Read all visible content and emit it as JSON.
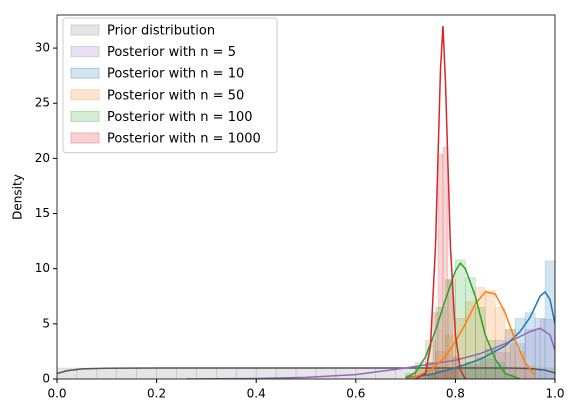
{
  "chart_data": {
    "type": "histogram",
    "y_label": "Density",
    "xlim": [
      0,
      1
    ],
    "ylim": [
      0,
      33
    ],
    "xticks": [
      {
        "value": 0,
        "label": "0.0"
      },
      0.2,
      0.4,
      0.6,
      0.8,
      {
        "value": 1,
        "label": "1.0"
      }
    ],
    "yticks": [
      0,
      5,
      10,
      15,
      20,
      25,
      30
    ],
    "legend": "upper left",
    "series": [
      {
        "name": "Prior distribution",
        "color": "#7f7f7f",
        "line_color": "#555555",
        "bins": [
          0,
          0.04,
          0.08,
          0.12,
          0.16,
          0.2,
          0.24,
          0.28,
          0.32,
          0.36,
          0.4,
          0.44,
          0.48,
          0.52,
          0.56,
          0.6,
          0.64,
          0.68,
          0.72,
          0.76,
          0.8,
          0.84,
          0.88,
          0.92,
          0.96,
          1
        ],
        "values": [
          1,
          1,
          1,
          1,
          1,
          1,
          1,
          1,
          1,
          1,
          1,
          1,
          1,
          1,
          1,
          1,
          1,
          1,
          1,
          1,
          1,
          1,
          1,
          1,
          1
        ],
        "line_x": [
          0,
          0.02,
          0.05,
          0.1,
          0.2,
          0.3,
          0.4,
          0.5,
          0.6,
          0.7,
          0.8,
          0.9,
          0.95,
          0.98,
          1
        ],
        "line_y": [
          0.5,
          0.75,
          0.92,
          0.98,
          1,
          1,
          1,
          1,
          1,
          1,
          1,
          1,
          0.95,
          0.8,
          0.55
        ]
      },
      {
        "name": "Posterior with n = 5",
        "color": "#9467bd",
        "line_color": "#9467bd",
        "bins": [
          0.7,
          0.73,
          0.76,
          0.79,
          0.82,
          0.85,
          0.88,
          0.91,
          0.94,
          0.97,
          1
        ],
        "values": [
          0.3,
          0.5,
          0.8,
          1,
          1.3,
          1.8,
          2.4,
          3.2,
          4.5,
          5.4
        ],
        "line_x": [
          0.26,
          0.4,
          0.5,
          0.6,
          0.7,
          0.8,
          0.85,
          0.9,
          0.95,
          0.97,
          0.99,
          1
        ],
        "line_y": [
          0,
          0.05,
          0.15,
          0.4,
          1,
          1.7,
          2.3,
          3.2,
          4.3,
          4.6,
          4,
          2.6
        ]
      },
      {
        "name": "Posterior with n = 10",
        "color": "#1f77b4",
        "line_color": "#1f77b4",
        "bins": [
          0.7,
          0.72,
          0.74,
          0.76,
          0.78,
          0.8,
          0.82,
          0.84,
          0.86,
          0.88,
          0.9,
          0.92,
          0.94,
          0.96,
          0.98,
          1
        ],
        "values": [
          0.2,
          0.3,
          0.5,
          0.8,
          1,
          1.2,
          1.5,
          2,
          2.7,
          3.5,
          4.5,
          5.5,
          6,
          5.5,
          10.7
        ],
        "line_x": [
          0.7,
          0.75,
          0.8,
          0.85,
          0.9,
          0.93,
          0.95,
          0.97,
          0.98,
          0.99,
          1
        ],
        "line_y": [
          0.1,
          0.4,
          1,
          1.8,
          3,
          4.3,
          5.6,
          7.5,
          7.9,
          7.2,
          5
        ]
      },
      {
        "name": "Posterior with n = 50",
        "color": "#ff7f0e",
        "line_color": "#ff7f0e",
        "bins": [
          0.7,
          0.72,
          0.74,
          0.76,
          0.78,
          0.8,
          0.82,
          0.84,
          0.86,
          0.88,
          0.9,
          0.92,
          0.94,
          0.96
        ],
        "values": [
          0.3,
          0.8,
          1.5,
          2.5,
          4,
          5.5,
          7,
          8.3,
          8,
          6.5,
          4.5,
          2.5,
          1.2
        ],
        "line_x": [
          0.7,
          0.72,
          0.75,
          0.78,
          0.8,
          0.82,
          0.84,
          0.86,
          0.88,
          0.9,
          0.92,
          0.94,
          0.96
        ],
        "line_y": [
          0,
          0.2,
          0.8,
          2,
          3.4,
          5,
          6.8,
          7.9,
          7.7,
          6,
          3.5,
          1.5,
          0.3
        ]
      },
      {
        "name": "Posterior with n = 100",
        "color": "#2ca02c",
        "line_color": "#2ca02c",
        "bins": [
          0.7,
          0.72,
          0.74,
          0.76,
          0.78,
          0.8,
          0.82,
          0.84,
          0.86,
          0.88,
          0.9,
          0.92
        ],
        "values": [
          0.5,
          1.5,
          3.5,
          6.5,
          9,
          10.8,
          9.2,
          6.5,
          3.5,
          1.5,
          0.4
        ],
        "line_x": [
          0.7,
          0.72,
          0.74,
          0.76,
          0.78,
          0.8,
          0.81,
          0.82,
          0.84,
          0.86,
          0.88,
          0.9,
          0.93
        ],
        "line_y": [
          0.1,
          0.6,
          2,
          4.4,
          7.2,
          9.8,
          10.5,
          10,
          7.5,
          4,
          1.8,
          0.5,
          0
        ]
      },
      {
        "name": "Posterior with n = 1000",
        "color": "#d62728",
        "line_color": "#d62728",
        "bins": [
          0.745,
          0.755,
          0.765,
          0.775,
          0.785,
          0.795,
          0.805
        ],
        "values": [
          1.5,
          6,
          20.4,
          21,
          9,
          2
        ],
        "line_x": [
          0.72,
          0.74,
          0.75,
          0.76,
          0.77,
          0.775,
          0.78,
          0.79,
          0.8,
          0.81,
          0.82
        ],
        "line_y": [
          0,
          0.5,
          3,
          12,
          28,
          32,
          27,
          12,
          4,
          0.8,
          0
        ]
      }
    ]
  }
}
